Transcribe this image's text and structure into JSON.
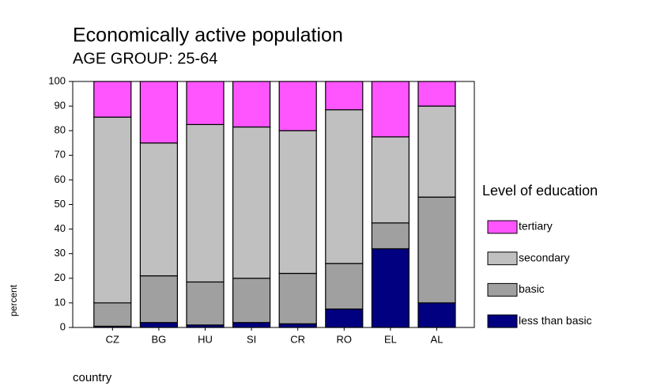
{
  "chart_data": {
    "type": "stacked_bar",
    "title": "Economically active population",
    "subtitle": "AGE GROUP:  25-64",
    "x_label": "country",
    "y_label": "percent",
    "legend_title": "Level of education",
    "categories": [
      "CZ",
      "BG",
      "HU",
      "SI",
      "CR",
      "RO",
      "EL",
      "AL"
    ],
    "series": [
      {
        "name": "less than basic",
        "color": "#000080",
        "values": [
          0.5,
          2,
          1,
          2,
          1.5,
          7.5,
          32,
          10
        ]
      },
      {
        "name": "basic",
        "color": "#a0a0a0",
        "values": [
          9.5,
          19,
          17.5,
          18,
          20.5,
          18.5,
          10.5,
          43
        ]
      },
      {
        "name": "secondary",
        "color": "#c0c0c0",
        "values": [
          75.5,
          54,
          64,
          61.5,
          58,
          62.5,
          35,
          37
        ]
      },
      {
        "name": "tertiary",
        "color": "#ff55ff",
        "values": [
          14.5,
          25,
          17.5,
          18.5,
          20,
          11.5,
          22.5,
          10
        ]
      }
    ],
    "ylim": [
      0,
      100
    ],
    "yticks": [
      0,
      10,
      20,
      30,
      40,
      50,
      60,
      70,
      80,
      90,
      100
    ],
    "legend": "right"
  }
}
